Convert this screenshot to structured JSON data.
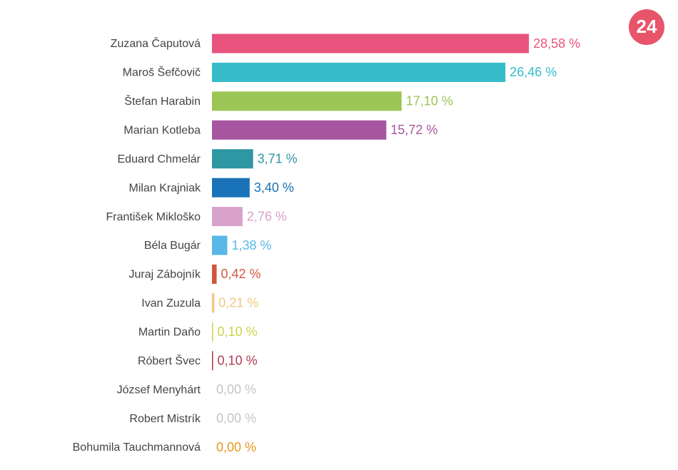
{
  "logo": "24",
  "chart_data": {
    "type": "bar",
    "orientation": "horizontal",
    "categories": [
      "Zuzana Čaputová",
      "Maroš Šefčovič",
      "Štefan Harabin",
      "Marian Kotleba",
      "Eduard Chmelár",
      "Milan Krajniak",
      "František Mikloško",
      "Béla Bugár",
      "Juraj Zábojník",
      "Ivan Zuzula",
      "Martin Daňo",
      "Róbert Švec",
      "József Menyhárt",
      "Robert Mistrík",
      "Bohumila Tauchmannová"
    ],
    "values": [
      28.58,
      26.46,
      17.1,
      15.72,
      3.71,
      3.4,
      2.76,
      1.38,
      0.42,
      0.21,
      0.1,
      0.1,
      0.0,
      0.0,
      0.0
    ],
    "value_labels": [
      "28,58 %",
      "26,46 %",
      "17,10 %",
      "15,72 %",
      "3,71 %",
      "3,40 %",
      "2,76 %",
      "1,38 %",
      "0,42 %",
      "0,21 %",
      "0,10 %",
      "0,10 %",
      "0,00 %",
      "0,00 %",
      "0,00 %"
    ],
    "colors": [
      "#e8547e",
      "#35bcc8",
      "#9bc655",
      "#a855a0",
      "#2e97a4",
      "#1a73b8",
      "#d9a2cb",
      "#59b8e6",
      "#d2563c",
      "#f3c57f",
      "#cad54a",
      "#b13b55",
      "#c5c5c5",
      "#c5c5c5",
      "#e9961f"
    ]
  }
}
